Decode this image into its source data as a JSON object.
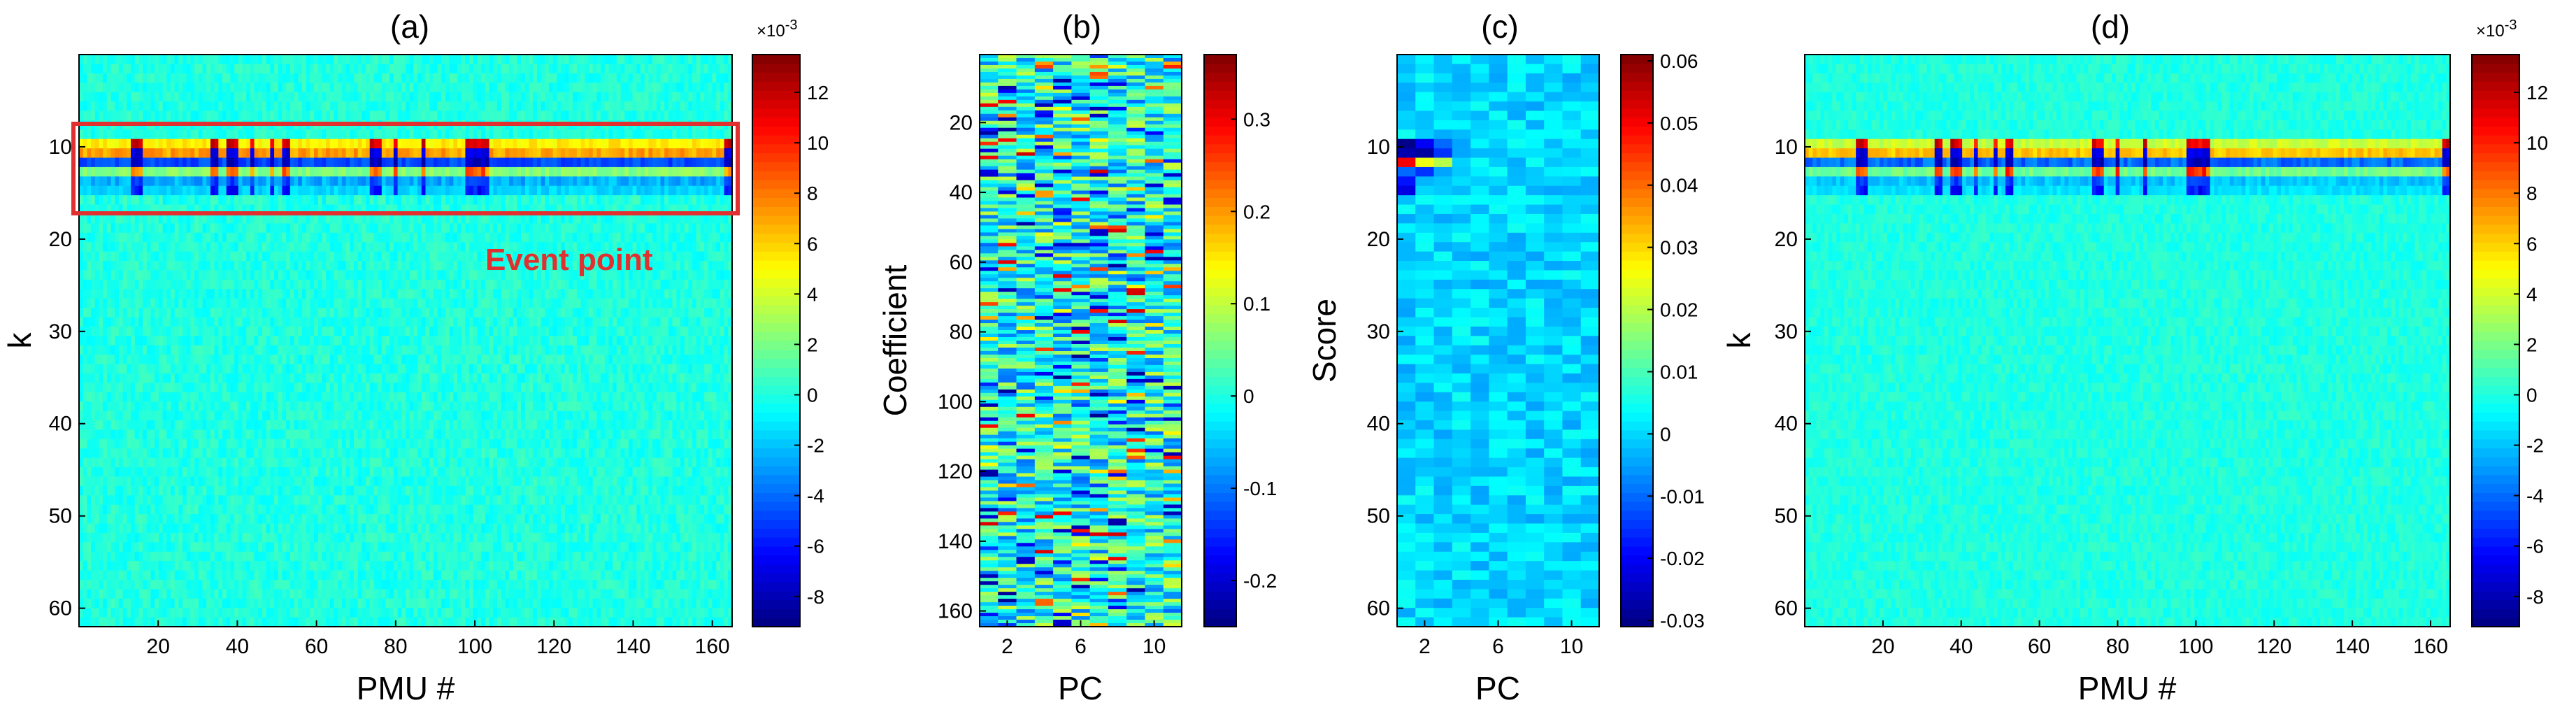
{
  "chart_data": [
    {
      "id": "a",
      "type": "heatmap",
      "title": "(a)",
      "xlabel": "PMU #",
      "ylabel": "k",
      "xlim": [
        0,
        165
      ],
      "ylim": [
        0,
        62
      ],
      "xticks": [
        20,
        40,
        60,
        80,
        100,
        120,
        140,
        160
      ],
      "yticks": [
        10,
        20,
        30,
        40,
        50,
        60
      ],
      "grid_cols": 164,
      "grid_rows": 61,
      "clim": [
        -9.2,
        13.5
      ],
      "colorbar": {
        "ticks": [
          12,
          10,
          8,
          6,
          4,
          2,
          0,
          -2,
          -4,
          -6,
          -8
        ],
        "exponent": "×10",
        "exponent_power": "-3"
      },
      "event_band_rows": [
        10,
        16
      ],
      "annotation": {
        "text": "Event point",
        "box_rows": [
          7.5,
          17.2
        ]
      }
    },
    {
      "id": "b",
      "type": "heatmap",
      "title": "(b)",
      "xlabel": "PC",
      "ylabel": "Coefficient",
      "xlim": [
        0.5,
        11.5
      ],
      "ylim": [
        0.5,
        164.5
      ],
      "xticks": [
        2,
        6,
        10
      ],
      "yticks": [
        20,
        40,
        60,
        80,
        100,
        120,
        140,
        160
      ],
      "grid_cols": 11,
      "grid_rows": 164,
      "clim": [
        -0.25,
        0.37
      ],
      "colorbar": {
        "ticks": [
          0.3,
          0.2,
          0.1,
          0,
          -0.1,
          -0.2
        ]
      }
    },
    {
      "id": "c",
      "type": "heatmap",
      "title": "(c)",
      "xlabel": "PC",
      "ylabel": "Score",
      "xlim": [
        0.5,
        11.5
      ],
      "ylim": [
        0,
        62
      ],
      "xticks": [
        2,
        6,
        10
      ],
      "yticks": [
        10,
        20,
        30,
        40,
        50,
        60
      ],
      "grid_cols": 11,
      "grid_rows": 61,
      "clim": [
        -0.031,
        0.061
      ],
      "colorbar": {
        "ticks": [
          0.06,
          0.05,
          0.04,
          0.03,
          0.02,
          0.01,
          0,
          -0.01,
          -0.02,
          -0.03
        ]
      },
      "event_rows": [
        10,
        11,
        12,
        13,
        14,
        15
      ]
    },
    {
      "id": "d",
      "type": "heatmap",
      "title": "(d)",
      "xlabel": "PMU #",
      "ylabel": "k",
      "xlim": [
        0,
        165
      ],
      "ylim": [
        0,
        62
      ],
      "xticks": [
        20,
        40,
        60,
        80,
        100,
        120,
        140,
        160
      ],
      "yticks": [
        10,
        20,
        30,
        40,
        50,
        60
      ],
      "grid_cols": 164,
      "grid_rows": 61,
      "clim": [
        -9.2,
        13.5
      ],
      "colorbar": {
        "ticks": [
          12,
          10,
          8,
          6,
          4,
          2,
          0,
          -2,
          -4,
          -6,
          -8
        ],
        "exponent": "×10",
        "exponent_power": "-3"
      },
      "event_band_rows": [
        10,
        16
      ]
    }
  ]
}
